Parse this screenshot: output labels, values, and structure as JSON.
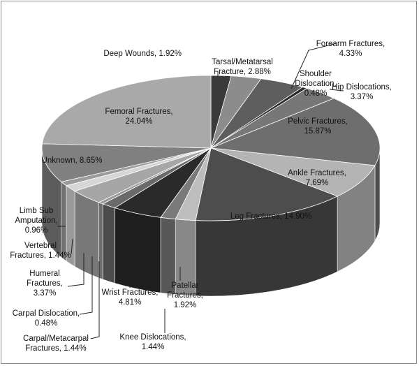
{
  "chart_data": {
    "type": "pie",
    "style": "3d",
    "title": "",
    "legend": "none",
    "slices": [
      {
        "label": "Deep Wounds, 1.92%",
        "value": 1.92,
        "color": "#3a3a3a"
      },
      {
        "label": "Tarsal/Metatarsal\nFracture, 2.88%",
        "value": 2.88,
        "color": "#8c8c8c"
      },
      {
        "label": "Forearm Fractures,\n4.33%",
        "value": 4.33,
        "color": "#5e5e5e"
      },
      {
        "label": "Shoulder\nDislocation,\n0.48%",
        "value": 0.48,
        "color": "#2c2c2c"
      },
      {
        "label": "Hip Dislocations,\n3.37%",
        "value": 3.37,
        "color": "#777777"
      },
      {
        "label": "Pelvic Fractures,\n15.87%",
        "value": 15.87,
        "color": "#6e6e6e"
      },
      {
        "label": "Ankle Fractures,\n7.69%",
        "value": 7.69,
        "color": "#b4b4b4"
      },
      {
        "label": "Leg Fractures, 14.90%",
        "value": 14.9,
        "color": "#4d4d4d"
      },
      {
        "label": "Patellar\nFractures,\n1.92%",
        "value": 1.92,
        "color": "#bdbdbd"
      },
      {
        "label": "Knee Dislocations,\n1.44%",
        "value": 1.44,
        "color": "#7a7a7a"
      },
      {
        "label": "Wrist Fractures,\n4.81%",
        "value": 4.81,
        "color": "#2a2a2a"
      },
      {
        "label": "Carpal/Metacarpal\nFractures, 1.44%",
        "value": 1.44,
        "color": "#6a6a6a"
      },
      {
        "label": "Carpal Dislocation,\n0.48%",
        "value": 0.48,
        "color": "#979797"
      },
      {
        "label": "Humeral\nFractures,\n3.37%",
        "value": 3.37,
        "color": "#a6a6a6"
      },
      {
        "label": "Vertebral\nFractures, 1.44%",
        "value": 1.44,
        "color": "#d6d6d6"
      },
      {
        "label": "Limb Sub\nAmputation,\n0.96%",
        "value": 0.96,
        "color": "#9c9c9c"
      },
      {
        "label": "Unknown, 8.65%",
        "value": 8.65,
        "color": "#808080"
      },
      {
        "label": "Femoral Fractures,\n24.04%",
        "value": 24.04,
        "color": "#a9a9a9"
      }
    ]
  }
}
